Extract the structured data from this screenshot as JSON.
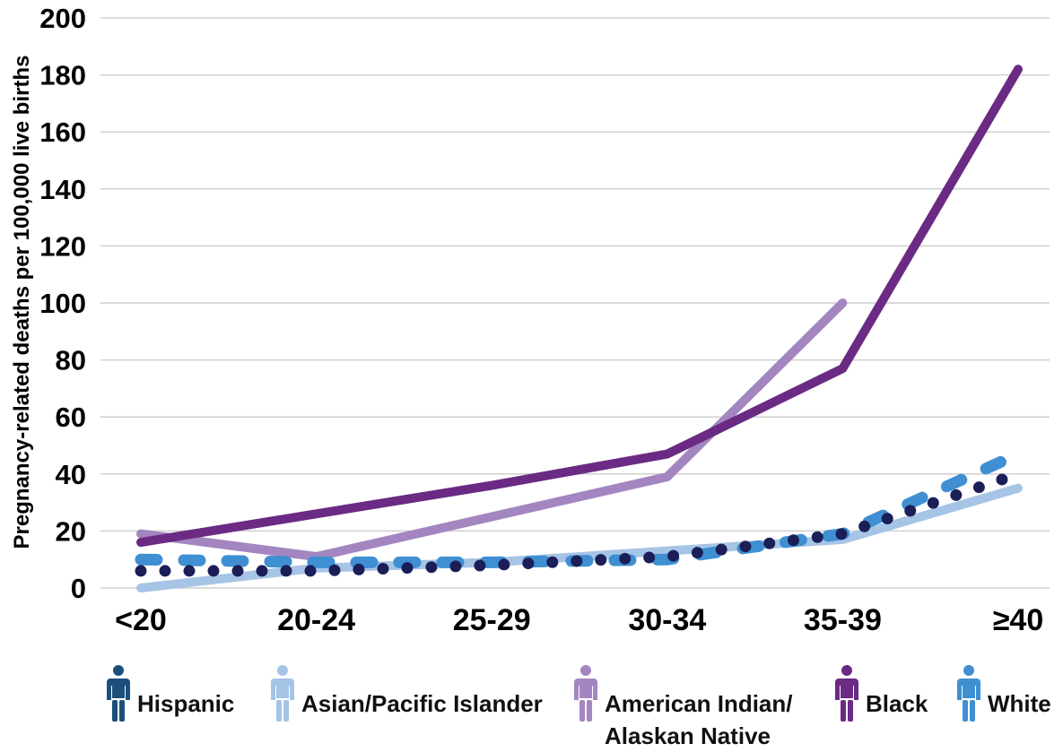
{
  "chart_data": {
    "type": "line",
    "title": "",
    "xlabel": "",
    "ylabel": "Pregnancy-related deaths per 100,000 live births",
    "ylim": [
      0,
      200
    ],
    "yticks": [
      "0",
      "20",
      "40",
      "60",
      "80",
      "100",
      "120",
      "140",
      "160",
      "180",
      "200"
    ],
    "categories": [
      "<20",
      "20-24",
      "25-29",
      "30-34",
      "35-39",
      "≥40"
    ],
    "grid": "horizontal",
    "legend_position": "bottom",
    "series": [
      {
        "name": "Hispanic",
        "values": [
          6,
          6,
          8,
          11,
          19,
          40
        ],
        "color": "#1b1f57",
        "style": "dotted"
      },
      {
        "name": "Asian/Pacific Islander",
        "values": [
          0,
          7,
          9,
          13,
          17,
          35
        ],
        "color": "#a6c4e6",
        "style": "solid"
      },
      {
        "name": "American Indian/ Alaskan Native",
        "values": [
          19,
          11,
          25,
          39,
          100,
          null
        ],
        "color": "#a386c0",
        "style": "solid"
      },
      {
        "name": "Black",
        "values": [
          16,
          26,
          36,
          47,
          77,
          182
        ],
        "color": "#6b2a84",
        "style": "solid"
      },
      {
        "name": "White",
        "values": [
          10,
          9,
          9,
          10,
          19,
          47
        ],
        "color": "#3f8fd2",
        "style": "dashed"
      }
    ]
  },
  "legend": {
    "items": [
      {
        "label_line1": "Hispanic",
        "label_line2": "",
        "icon": "person-icon",
        "color": "#1c4f7c"
      },
      {
        "label_line1": "Asian/Pacific Islander",
        "label_line2": "",
        "icon": "person-icon",
        "color": "#a6c4e6"
      },
      {
        "label_line1": "American Indian/",
        "label_line2": "Alaskan Native",
        "icon": "person-icon",
        "color": "#a386c0"
      },
      {
        "label_line1": "Black",
        "label_line2": "",
        "icon": "person-icon",
        "color": "#6b2a84"
      },
      {
        "label_line1": "White",
        "label_line2": "",
        "icon": "person-icon",
        "color": "#3f8fd2"
      }
    ]
  }
}
